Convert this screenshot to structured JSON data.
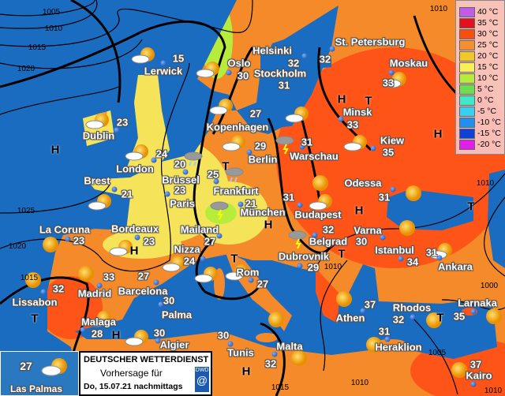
{
  "legend": {
    "title": "",
    "items": [
      {
        "label": "40 °C",
        "color": "#c05ce8"
      },
      {
        "label": "35 °C",
        "color": "#e4101c"
      },
      {
        "label": "30 °C",
        "color": "#f55010"
      },
      {
        "label": "25 °C",
        "color": "#f59030"
      },
      {
        "label": "20 °C",
        "color": "#f0c828"
      },
      {
        "label": "15 °C",
        "color": "#f8f058"
      },
      {
        "label": "10 °C",
        "color": "#b8ec3c"
      },
      {
        "label": "5 °C",
        "color": "#6cdc50"
      },
      {
        "label": "0 °C",
        "color": "#40e8c8"
      },
      {
        "label": "-5 °C",
        "color": "#38d0f0"
      },
      {
        "label": "-10 °C",
        "color": "#2090f0"
      },
      {
        "label": "-15 °C",
        "color": "#1040d8"
      },
      {
        "label": "-20 °C",
        "color": "#e020e8"
      }
    ]
  },
  "colors": {
    "sea": "#1a6cc0",
    "land_warm": "#f58a2a",
    "land_hot": "#ff5418",
    "land_mild": "#f5e45a"
  },
  "cities": [
    {
      "name": "Lerwick",
      "temp": "15"
    },
    {
      "name": "Oslo",
      "temp": "30"
    },
    {
      "name": "Helsinki",
      "temp": "32"
    },
    {
      "name": "Stockholm",
      "temp": "31"
    },
    {
      "name": "St. Petersburg",
      "temp": "32"
    },
    {
      "name": "Moskau",
      "temp": "33"
    },
    {
      "name": "Dublin",
      "temp": "23"
    },
    {
      "name": "London",
      "temp": "24"
    },
    {
      "name": "Kopenhagen",
      "temp": "27"
    },
    {
      "name": "Berlin",
      "temp": "29"
    },
    {
      "name": "Warschau",
      "temp": "31"
    },
    {
      "name": "Minsk",
      "temp": "33"
    },
    {
      "name": "Kiew",
      "temp": "35"
    },
    {
      "name": "Odessa",
      "temp": "31"
    },
    {
      "name": "Brest",
      "temp": "21"
    },
    {
      "name": "Brüssel",
      "temp": "20"
    },
    {
      "name": "Paris",
      "temp": "23"
    },
    {
      "name": "Frankfurt",
      "temp": "25"
    },
    {
      "name": "München",
      "temp": "21"
    },
    {
      "name": "Budapest",
      "temp": "31"
    },
    {
      "name": "Bordeaux",
      "temp": "23"
    },
    {
      "name": "La Coruna",
      "temp": "23"
    },
    {
      "name": "Mailand",
      "temp": "27"
    },
    {
      "name": "Nizza",
      "temp": "24"
    },
    {
      "name": "Belgrad",
      "temp": "32"
    },
    {
      "name": "Varna",
      "temp": "30"
    },
    {
      "name": "Dubrovnik",
      "temp": "29"
    },
    {
      "name": "Istanbul",
      "temp": "34"
    },
    {
      "name": "Ankara",
      "temp": "31"
    },
    {
      "name": "Rom",
      "temp": "27"
    },
    {
      "name": "Madrid",
      "temp": "33"
    },
    {
      "name": "Lissabon",
      "temp": "32"
    },
    {
      "name": "Barcelona",
      "temp": "27"
    },
    {
      "name": "Palma",
      "temp": "30"
    },
    {
      "name": "Malaga",
      "temp": "28"
    },
    {
      "name": "Algier",
      "temp": "30"
    },
    {
      "name": "Tunis",
      "temp": "30"
    },
    {
      "name": "Malta",
      "temp": "32"
    },
    {
      "name": "Athen",
      "temp": "37"
    },
    {
      "name": "Rhodos",
      "temp": "32"
    },
    {
      "name": "Heraklion",
      "temp": "31"
    },
    {
      "name": "Larnaka",
      "temp": "35"
    },
    {
      "name": "Kairo",
      "temp": "37"
    }
  ],
  "isobars": [
    "1005",
    "1010",
    "1015",
    "1020",
    "1025",
    "1020",
    "1015",
    "1010",
    "1010",
    "1010",
    "1010",
    "1000",
    "1005",
    "1010",
    "1015"
  ],
  "pressure_centers": [
    "H",
    "H",
    "H",
    "H",
    "H",
    "H",
    "H",
    "H",
    "T",
    "T",
    "T",
    "T",
    "T",
    "T",
    "T"
  ],
  "inset": {
    "city": "Las Palmas",
    "temp": "27",
    "icon": "partly-cloudy-icon"
  },
  "footer": {
    "org": "DEUTSCHER WETTERDIENST",
    "line1": "Vorhersage für",
    "line2": "Do, 15.07.21 nachmittags",
    "logo_text": "DWD"
  }
}
